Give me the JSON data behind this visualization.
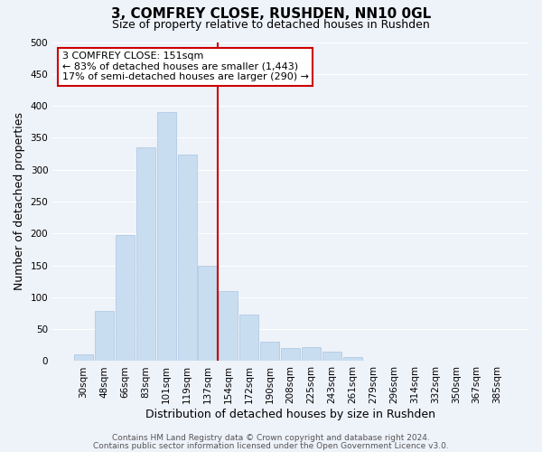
{
  "title": "3, COMFREY CLOSE, RUSHDEN, NN10 0GL",
  "subtitle": "Size of property relative to detached houses in Rushden",
  "xlabel": "Distribution of detached houses by size in Rushden",
  "ylabel": "Number of detached properties",
  "bar_labels": [
    "30sqm",
    "48sqm",
    "66sqm",
    "83sqm",
    "101sqm",
    "119sqm",
    "137sqm",
    "154sqm",
    "172sqm",
    "190sqm",
    "208sqm",
    "225sqm",
    "243sqm",
    "261sqm",
    "279sqm",
    "296sqm",
    "314sqm",
    "332sqm",
    "350sqm",
    "367sqm",
    "385sqm"
  ],
  "bar_values": [
    10,
    78,
    197,
    335,
    390,
    323,
    150,
    110,
    73,
    30,
    20,
    22,
    15,
    6,
    1,
    0,
    0,
    0,
    0,
    0,
    0
  ],
  "bar_color": "#c8ddf0",
  "bar_edge_color": "#aac4e0",
  "marker_line_color": "#cc0000",
  "ylim": [
    0,
    500
  ],
  "yticks": [
    0,
    50,
    100,
    150,
    200,
    250,
    300,
    350,
    400,
    450,
    500
  ],
  "annotation_title": "3 COMFREY CLOSE: 151sqm",
  "annotation_line1": "← 83% of detached houses are smaller (1,443)",
  "annotation_line2": "17% of semi-detached houses are larger (290) →",
  "annotation_box_color": "#ffffff",
  "annotation_box_edge": "#cc0000",
  "footer_line1": "Contains HM Land Registry data © Crown copyright and database right 2024.",
  "footer_line2": "Contains public sector information licensed under the Open Government Licence v3.0.",
  "background_color": "#eef2f9",
  "grid_color": "#ffffff",
  "title_fontsize": 11,
  "subtitle_fontsize": 9,
  "axis_label_fontsize": 9,
  "tick_fontsize": 7.5,
  "annotation_fontsize": 8,
  "footer_fontsize": 6.5
}
